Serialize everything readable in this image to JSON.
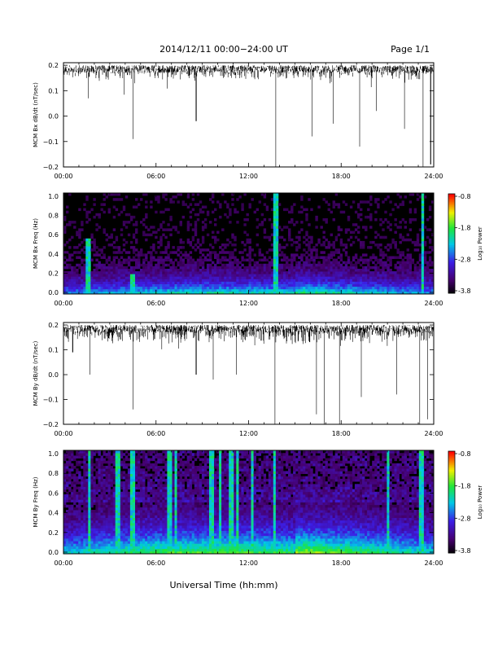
{
  "header": {
    "date_range": "2014/12/11   00:00−24:00 UT",
    "page": "Page 1/1"
  },
  "footer": {
    "xlabel": "Universal Time (hh:mm)"
  },
  "chart_data": [
    {
      "type": "line",
      "ylabel": "MCM Bx dB/dt (nT/sec)",
      "x_ticks": [
        "00:00",
        "06:00",
        "12:00",
        "18:00",
        "24:00"
      ],
      "y_ticks": [
        "0.2",
        "0.1",
        "0.0",
        "−0.1",
        "−0.2"
      ],
      "xlim": [
        0,
        24
      ],
      "ylim": [
        -0.2,
        0.21
      ],
      "baseline_band": [
        0.14,
        0.2
      ],
      "dips": [
        {
          "t": 1.6,
          "v": 0.07
        },
        {
          "t": 4.5,
          "v": -0.09
        },
        {
          "t": 8.6,
          "v": -0.02
        },
        {
          "t": 13.75,
          "v": -0.2
        },
        {
          "t": 16.1,
          "v": -0.08
        },
        {
          "t": 17.5,
          "v": -0.03
        },
        {
          "t": 19.2,
          "v": -0.12
        },
        {
          "t": 20.3,
          "v": 0.02
        },
        {
          "t": 22.1,
          "v": -0.05
        },
        {
          "t": 23.3,
          "v": -0.2
        },
        {
          "t": 23.8,
          "v": -0.19
        }
      ]
    },
    {
      "type": "heatmap",
      "ylabel": "MCM Bx Freq (Hz)",
      "x_ticks": [
        "00:00",
        "06:00",
        "12:00",
        "18:00",
        "24:00"
      ],
      "y_ticks": [
        "1.0",
        "0.8",
        "0.6",
        "0.4",
        "0.2",
        "0.0"
      ],
      "xlim": [
        0,
        24
      ],
      "ylim": [
        0,
        1.0
      ],
      "colorbar": {
        "label": "Log₁₀ Power",
        "ticks": [
          "-0.8",
          "-1.8",
          "-2.8",
          "-3.8"
        ],
        "range": [
          -3.8,
          -0.8
        ]
      },
      "spikes": [
        {
          "t": 1.6,
          "height": 0.55
        },
        {
          "t": 4.5,
          "height": 0.2
        },
        {
          "t": 13.75,
          "height": 1.0
        },
        {
          "t": 23.3,
          "height": 1.0
        }
      ]
    },
    {
      "type": "line",
      "ylabel": "MCM By dB/dt (nT/sec)",
      "x_ticks": [
        "00:00",
        "06:00",
        "12:00",
        "18:00",
        "24:00"
      ],
      "y_ticks": [
        "0.2",
        "0.1",
        "0.0",
        "−0.1",
        "−0.2"
      ],
      "xlim": [
        0,
        24
      ],
      "ylim": [
        -0.2,
        0.21
      ],
      "baseline_band": [
        0.12,
        0.2
      ],
      "dips": [
        {
          "t": 0.6,
          "v": 0.09
        },
        {
          "t": 1.7,
          "v": 0.0
        },
        {
          "t": 4.5,
          "v": -0.14
        },
        {
          "t": 8.6,
          "v": 0.0
        },
        {
          "t": 9.7,
          "v": -0.02
        },
        {
          "t": 11.2,
          "v": 0.0
        },
        {
          "t": 13.7,
          "v": -0.2
        },
        {
          "t": 16.4,
          "v": -0.16
        },
        {
          "t": 16.9,
          "v": -0.2
        },
        {
          "t": 17.9,
          "v": -0.2
        },
        {
          "t": 19.3,
          "v": -0.09
        },
        {
          "t": 21.6,
          "v": -0.08
        },
        {
          "t": 23.1,
          "v": -0.2
        },
        {
          "t": 23.6,
          "v": -0.18
        }
      ]
    },
    {
      "type": "heatmap",
      "ylabel": "MCM By Freq (Hz)",
      "x_ticks": [
        "00:00",
        "06:00",
        "12:00",
        "18:00",
        "24:00"
      ],
      "y_ticks": [
        "1.0",
        "0.8",
        "0.6",
        "0.4",
        "0.2",
        "0.0"
      ],
      "xlim": [
        0,
        24
      ],
      "ylim": [
        0,
        1.0
      ],
      "colorbar": {
        "label": "Log₁₀ Power",
        "ticks": [
          "-0.8",
          "-1.8",
          "-2.8",
          "-3.8"
        ],
        "range": [
          -3.8,
          -0.8
        ]
      },
      "spikes": [
        {
          "t": 1.7,
          "height": 1.0
        },
        {
          "t": 3.5,
          "height": 1.0
        },
        {
          "t": 4.5,
          "height": 1.0
        },
        {
          "t": 6.9,
          "height": 1.0
        },
        {
          "t": 7.3,
          "height": 1.0
        },
        {
          "t": 9.6,
          "height": 1.0
        },
        {
          "t": 10.2,
          "height": 1.0
        },
        {
          "t": 10.9,
          "height": 1.0
        },
        {
          "t": 11.3,
          "height": 1.0
        },
        {
          "t": 12.2,
          "height": 1.0
        },
        {
          "t": 13.7,
          "height": 1.0
        },
        {
          "t": 21.0,
          "height": 1.0
        },
        {
          "t": 23.2,
          "height": 1.0
        }
      ]
    }
  ]
}
